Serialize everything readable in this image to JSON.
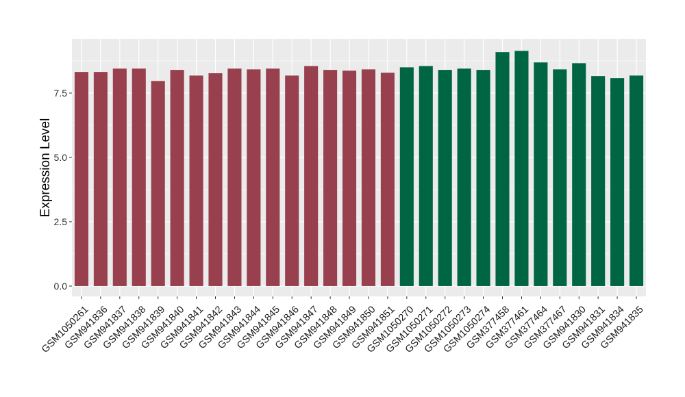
{
  "chart_data": {
    "type": "bar",
    "xlabel": "",
    "ylabel": "Expression Level",
    "ylim": [
      -0.4,
      9.6
    ],
    "yticks": [
      0.0,
      2.5,
      5.0,
      7.5
    ],
    "ytick_labels": [
      "0.0",
      "2.5",
      "5.0",
      "7.5"
    ],
    "grid": true,
    "legend": "none",
    "categories": [
      "GSM1050261",
      "GSM941836",
      "GSM941837",
      "GSM941838",
      "GSM941839",
      "GSM941840",
      "GSM941841",
      "GSM941842",
      "GSM941843",
      "GSM941844",
      "GSM941845",
      "GSM941846",
      "GSM941847",
      "GSM941848",
      "GSM941849",
      "GSM941850",
      "GSM941851",
      "GSM1050270",
      "GSM1050271",
      "GSM1050272",
      "GSM1050273",
      "GSM1050274",
      "GSM377458",
      "GSM377461",
      "GSM377464",
      "GSM377467",
      "GSM941830",
      "GSM941831",
      "GSM941834",
      "GSM941835"
    ],
    "values": [
      8.32,
      8.32,
      8.45,
      8.45,
      7.97,
      8.4,
      8.18,
      8.27,
      8.45,
      8.42,
      8.45,
      8.18,
      8.55,
      8.4,
      8.37,
      8.42,
      8.29,
      8.5,
      8.55,
      8.4,
      8.45,
      8.4,
      9.09,
      9.14,
      8.69,
      8.42,
      8.66,
      8.16,
      8.08,
      8.18
    ],
    "groups": [
      0,
      0,
      0,
      0,
      0,
      0,
      0,
      0,
      0,
      0,
      0,
      0,
      0,
      0,
      0,
      0,
      0,
      1,
      1,
      1,
      1,
      1,
      1,
      1,
      1,
      1,
      1,
      1,
      1,
      1
    ],
    "colors": [
      "#99404f",
      "#006543"
    ],
    "panel_color": "#ebebeb",
    "grid_color": "#ffffff"
  }
}
